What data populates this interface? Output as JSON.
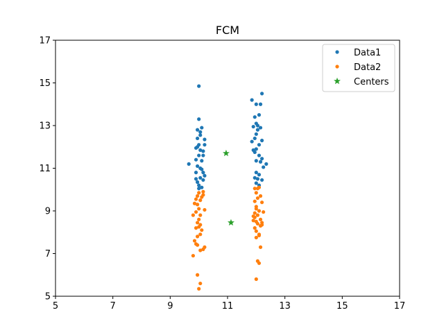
{
  "chart_data": {
    "type": "scatter",
    "title": "FCM",
    "xlabel": "",
    "ylabel": "",
    "xlim": [
      5,
      17
    ],
    "ylim": [
      5,
      17
    ],
    "xticks": [
      5,
      7,
      9,
      11,
      13,
      15,
      17
    ],
    "yticks": [
      5,
      7,
      9,
      11,
      13,
      15,
      17
    ],
    "grid": false,
    "legend_position": "top-right",
    "series": [
      {
        "name": "Data1",
        "color": "#1f77b4",
        "marker": "dot",
        "points": [
          [
            9.65,
            11.2
          ],
          [
            9.9,
            10.5
          ],
          [
            10.0,
            14.85
          ],
          [
            10.0,
            13.3
          ],
          [
            9.95,
            12.8
          ],
          [
            10.1,
            12.9
          ],
          [
            10.05,
            12.7
          ],
          [
            10.2,
            12.35
          ],
          [
            9.95,
            12.4
          ],
          [
            10.0,
            12.1
          ],
          [
            10.2,
            12.1
          ],
          [
            9.9,
            11.95
          ],
          [
            10.05,
            11.85
          ],
          [
            10.15,
            11.8
          ],
          [
            10.0,
            11.6
          ],
          [
            9.9,
            11.4
          ],
          [
            10.1,
            11.35
          ],
          [
            9.95,
            11.1
          ],
          [
            10.1,
            10.95
          ],
          [
            10.15,
            10.8
          ],
          [
            10.2,
            10.65
          ],
          [
            10.05,
            10.55
          ],
          [
            9.95,
            10.35
          ],
          [
            10.0,
            10.2
          ],
          [
            10.1,
            10.1
          ],
          [
            10.05,
            12.55
          ],
          [
            9.95,
            12.0
          ],
          [
            10.15,
            11.6
          ],
          [
            10.05,
            11.0
          ],
          [
            9.9,
            10.8
          ],
          [
            10.15,
            10.45
          ],
          [
            10.0,
            10.05
          ],
          [
            12.2,
            14.5
          ],
          [
            11.85,
            14.2
          ],
          [
            12.0,
            14.0
          ],
          [
            12.15,
            14.0
          ],
          [
            12.1,
            13.5
          ],
          [
            11.95,
            13.4
          ],
          [
            12.0,
            13.1
          ],
          [
            11.9,
            12.95
          ],
          [
            12.05,
            13.0
          ],
          [
            12.15,
            12.9
          ],
          [
            12.0,
            12.6
          ],
          [
            11.95,
            12.4
          ],
          [
            12.2,
            12.3
          ],
          [
            11.85,
            12.25
          ],
          [
            12.1,
            12.1
          ],
          [
            12.0,
            11.9
          ],
          [
            11.95,
            11.75
          ],
          [
            12.1,
            11.6
          ],
          [
            12.2,
            11.45
          ],
          [
            12.0,
            11.35
          ],
          [
            12.15,
            11.3
          ],
          [
            12.35,
            11.2
          ],
          [
            12.25,
            11.05
          ],
          [
            12.0,
            10.8
          ],
          [
            12.1,
            10.7
          ],
          [
            11.95,
            10.55
          ],
          [
            12.05,
            10.5
          ],
          [
            12.2,
            10.45
          ],
          [
            12.0,
            10.3
          ],
          [
            12.1,
            10.2
          ],
          [
            11.9,
            11.85
          ],
          [
            12.05,
            12.8
          ]
        ]
      },
      {
        "name": "Data2",
        "color": "#ff7f0e",
        "marker": "dot",
        "points": [
          [
            10.15,
            9.9
          ],
          [
            10.0,
            9.85
          ],
          [
            9.95,
            9.7
          ],
          [
            10.1,
            9.65
          ],
          [
            10.05,
            9.5
          ],
          [
            9.85,
            9.35
          ],
          [
            9.95,
            9.3
          ],
          [
            10.0,
            9.1
          ],
          [
            10.2,
            9.05
          ],
          [
            9.9,
            8.95
          ],
          [
            10.05,
            8.8
          ],
          [
            9.8,
            8.8
          ],
          [
            10.0,
            8.6
          ],
          [
            9.95,
            8.45
          ],
          [
            10.05,
            8.35
          ],
          [
            9.9,
            8.2
          ],
          [
            10.1,
            8.1
          ],
          [
            10.05,
            7.9
          ],
          [
            9.95,
            7.8
          ],
          [
            9.85,
            7.6
          ],
          [
            9.9,
            7.45
          ],
          [
            10.2,
            7.3
          ],
          [
            10.15,
            7.2
          ],
          [
            10.05,
            7.15
          ],
          [
            9.8,
            6.9
          ],
          [
            9.95,
            6.0
          ],
          [
            10.05,
            5.6
          ],
          [
            10.0,
            5.35
          ],
          [
            10.15,
            9.75
          ],
          [
            9.9,
            9.55
          ],
          [
            10.0,
            8.25
          ],
          [
            9.95,
            7.4
          ],
          [
            11.95,
            10.05
          ],
          [
            12.1,
            10.1
          ],
          [
            12.0,
            9.85
          ],
          [
            12.15,
            9.7
          ],
          [
            12.05,
            9.6
          ],
          [
            11.95,
            9.45
          ],
          [
            12.2,
            9.4
          ],
          [
            12.0,
            9.2
          ],
          [
            12.1,
            9.0
          ],
          [
            12.25,
            8.95
          ],
          [
            11.95,
            8.9
          ],
          [
            12.05,
            8.8
          ],
          [
            11.9,
            8.75
          ],
          [
            12.15,
            8.6
          ],
          [
            12.0,
            8.5
          ],
          [
            12.2,
            8.45
          ],
          [
            12.05,
            8.4
          ],
          [
            12.15,
            8.3
          ],
          [
            11.95,
            8.2
          ],
          [
            12.0,
            8.05
          ],
          [
            12.1,
            7.9
          ],
          [
            12.0,
            7.75
          ],
          [
            12.15,
            7.3
          ],
          [
            12.05,
            6.65
          ],
          [
            12.1,
            6.55
          ],
          [
            12.0,
            5.8
          ],
          [
            11.9,
            8.55
          ],
          [
            12.2,
            8.35
          ],
          [
            12.0,
            9.1
          ],
          [
            12.1,
            7.85
          ],
          [
            11.95,
            8.7
          ],
          [
            12.05,
            10.05
          ]
        ]
      },
      {
        "name": "Centers",
        "color": "#2ca02c",
        "marker": "star",
        "points": [
          [
            10.95,
            11.7
          ],
          [
            11.12,
            8.45
          ]
        ]
      }
    ]
  }
}
